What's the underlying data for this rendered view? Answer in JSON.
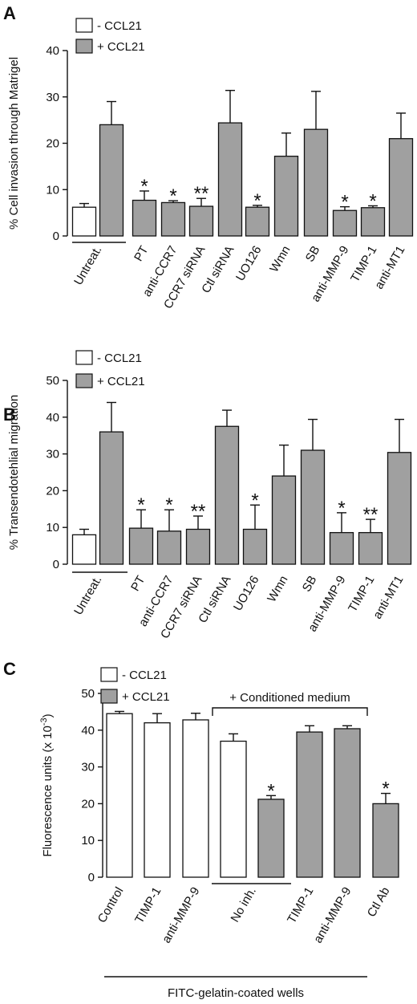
{
  "colors": {
    "minus": "#ffffff",
    "plus": "#a0a0a0",
    "stroke": "#111111"
  },
  "chart_data": [
    {
      "type": "bar",
      "panel": "A",
      "ylabel": "% Cell invasion through Matrigel",
      "ylim": [
        0,
        40
      ],
      "yticks": [
        0,
        10,
        20,
        30,
        40
      ],
      "legend": [
        "- CCL21",
        "+ CCL21"
      ],
      "categories": [
        "Untreat.",
        "Untreat.",
        "PT",
        "anti-CCR7",
        "CCR7 siRNA",
        "Ctl siRNA",
        "UO126",
        "Wmn",
        "SB",
        "anti-MMP-9",
        "TIMP-1",
        "anti-MT1"
      ],
      "condition": [
        "-",
        "+",
        "+",
        "+",
        "+",
        "+",
        "+",
        "+",
        "+",
        "+",
        "+",
        "+"
      ],
      "values": [
        6.2,
        24,
        7.7,
        7.2,
        6.4,
        24.4,
        6.2,
        17.2,
        23,
        5.5,
        6.1,
        21
      ],
      "errors": [
        0.8,
        5,
        2,
        0.4,
        1.7,
        7,
        0.4,
        5,
        8.2,
        0.8,
        0.4,
        5.5
      ],
      "annotations": [
        "",
        "",
        "*",
        "*",
        "**",
        "",
        "*",
        "",
        "",
        "*",
        "*",
        ""
      ],
      "group_underline": "Untreat."
    },
    {
      "type": "bar",
      "panel": "B",
      "ylabel": "% Transendotehlial migration",
      "ylim": [
        0,
        50
      ],
      "yticks": [
        0,
        10,
        20,
        30,
        40,
        50
      ],
      "legend": [
        "- CCL21",
        "+ CCL21"
      ],
      "categories": [
        "Untreat.",
        "Untreat.",
        "PT",
        "anti-CCR7",
        "CCR7 siRNA",
        "Ctl siRNA",
        "UO126",
        "Wmn",
        "SB",
        "anti-MMP-9",
        "TIMP-1",
        "anti-MT1"
      ],
      "condition": [
        "-",
        "+",
        "+",
        "+",
        "+",
        "+",
        "+",
        "+",
        "+",
        "+",
        "+",
        "+"
      ],
      "values": [
        8,
        36,
        9.8,
        9,
        9.5,
        37.5,
        9.5,
        24,
        31,
        8.6,
        8.6,
        30.4
      ],
      "errors": [
        1.5,
        8,
        5,
        5.8,
        3.6,
        4.4,
        6.6,
        8.4,
        8.4,
        5.4,
        3.6,
        9
      ],
      "annotations": [
        "",
        "",
        "*",
        "*",
        "**",
        "",
        "*",
        "",
        "",
        "*",
        "**",
        ""
      ],
      "group_underline": "Untreat."
    },
    {
      "type": "bar",
      "panel": "C",
      "ylabel": "Fluorescence units (x 10",
      "ylabel_sup": "-3",
      "ylabel_end": ")",
      "ylim": [
        0,
        50
      ],
      "yticks": [
        0,
        10,
        20,
        30,
        40,
        50
      ],
      "legend": [
        "- CCL21",
        "+ CCL21"
      ],
      "categories": [
        "Control",
        "TIMP-1",
        "anti-MMP-9",
        "No inh.",
        "No inh.",
        "TIMP-1",
        "anti-MMP-9",
        "Ctl Ab"
      ],
      "condition": [
        "-",
        "-",
        "-",
        "-",
        "+",
        "+",
        "+",
        "+"
      ],
      "values": [
        44.5,
        42,
        42.8,
        37,
        21.2,
        39.5,
        40.4,
        20
      ],
      "errors": [
        0.6,
        2.5,
        1.8,
        2,
        1,
        1.7,
        0.8,
        2.8
      ],
      "annotations": [
        "",
        "",
        "",
        "",
        "*",
        "",
        "",
        "*"
      ],
      "group_underline": "No inh.",
      "bracket_label": "+ Conditioned medium",
      "footer": "FITC-gelatin-coated wells"
    }
  ]
}
